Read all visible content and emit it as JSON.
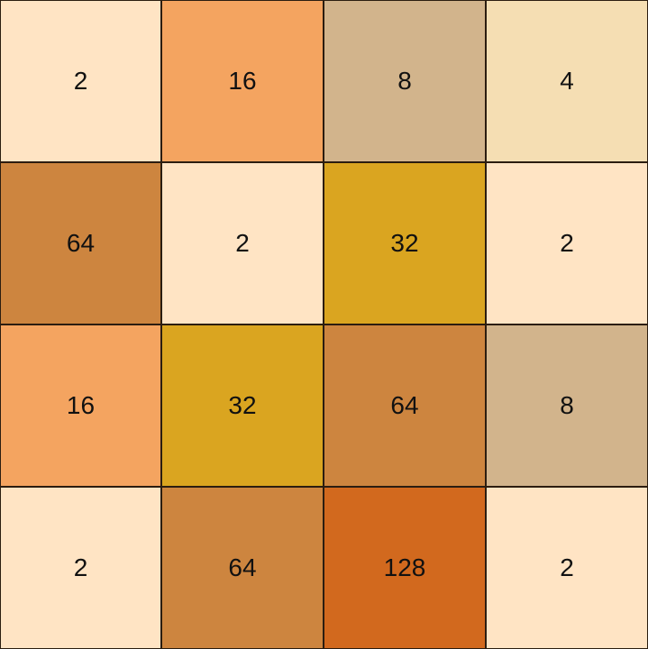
{
  "board": {
    "rows": [
      [
        {
          "value": "2",
          "color": "#FFE4C4"
        },
        {
          "value": "16",
          "color": "#F4A460"
        },
        {
          "value": "8",
          "color": "#D2B48C"
        },
        {
          "value": "4",
          "color": "#F5DEB3"
        }
      ],
      [
        {
          "value": "64",
          "color": "#CD853F"
        },
        {
          "value": "2",
          "color": "#FFE4C4"
        },
        {
          "value": "32",
          "color": "#DAA520"
        },
        {
          "value": "2",
          "color": "#FFE4C4"
        }
      ],
      [
        {
          "value": "16",
          "color": "#F4A460"
        },
        {
          "value": "32",
          "color": "#DAA520"
        },
        {
          "value": "64",
          "color": "#CD853F"
        },
        {
          "value": "8",
          "color": "#D2B48C"
        }
      ],
      [
        {
          "value": "2",
          "color": "#FFE4C4"
        },
        {
          "value": "64",
          "color": "#CD853F"
        },
        {
          "value": "128",
          "color": "#D2691E"
        },
        {
          "value": "2",
          "color": "#FFE4C4"
        }
      ]
    ]
  }
}
